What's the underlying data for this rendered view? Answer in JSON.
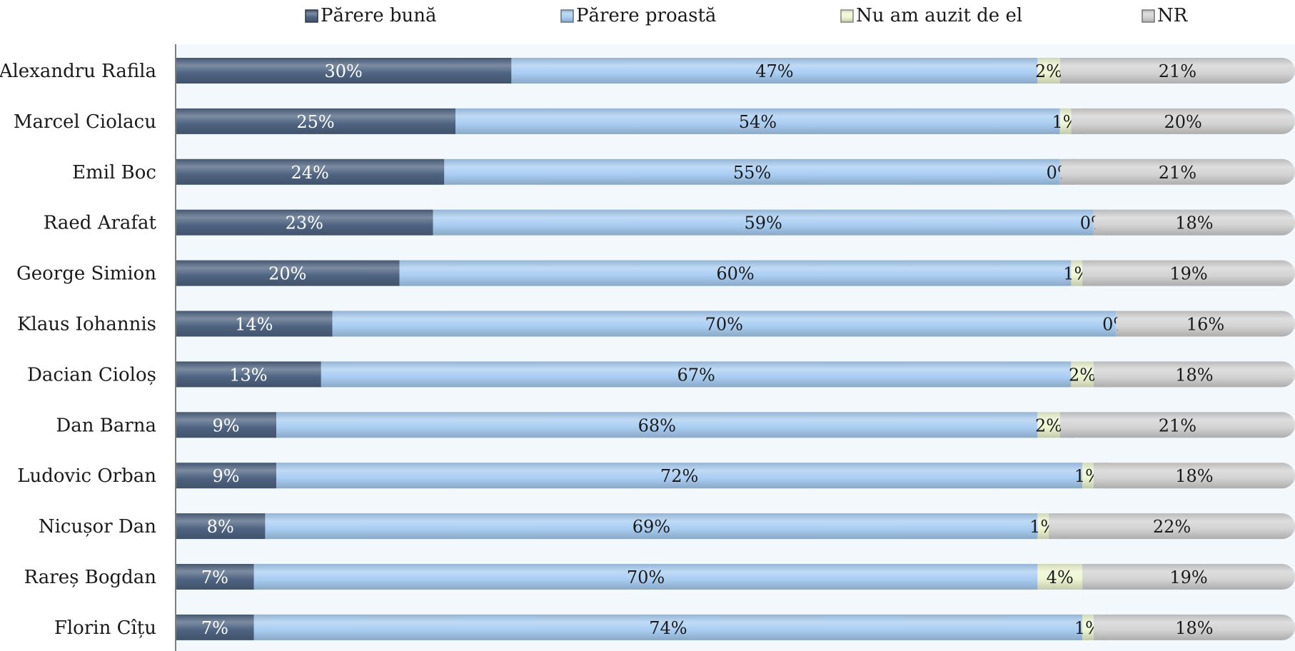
{
  "chart_data": {
    "type": "bar",
    "orientation": "horizontal",
    "stacked": "percent",
    "legend_position": "top",
    "categories": [
      "Alexandru Rafila",
      "Marcel Ciolacu",
      "Emil Boc",
      "Raed Arafat",
      "George Simion",
      "Klaus Iohannis",
      "Dacian Cioloș",
      "Dan Barna",
      "Ludovic Orban",
      "Nicușor Dan",
      "Rareș Bogdan",
      "Florin Cîțu"
    ],
    "series": [
      {
        "name": "Părere bună",
        "color": "#4f6482",
        "label_color": "#ffffff",
        "values": [
          30,
          25,
          24,
          23,
          20,
          14,
          13,
          9,
          9,
          8,
          7,
          7
        ]
      },
      {
        "name": "Părere proastă",
        "color": "#a9cdf2",
        "label_color": "#1a1a1a",
        "values": [
          47,
          54,
          55,
          59,
          60,
          70,
          67,
          68,
          72,
          69,
          70,
          74
        ]
      },
      {
        "name": "Nu am auzit de el",
        "color": "#eef5d2",
        "label_color": "#1a1a1a",
        "values": [
          2,
          1,
          0,
          0,
          1,
          0,
          2,
          2,
          1,
          1,
          4,
          1
        ]
      },
      {
        "name": "NR",
        "color": "#d3d3d3",
        "label_color": "#1a1a1a",
        "values": [
          21,
          20,
          21,
          18,
          19,
          16,
          18,
          21,
          18,
          22,
          19,
          18
        ]
      }
    ],
    "value_suffix": "%",
    "plot_background": "#f2f8fc"
  }
}
